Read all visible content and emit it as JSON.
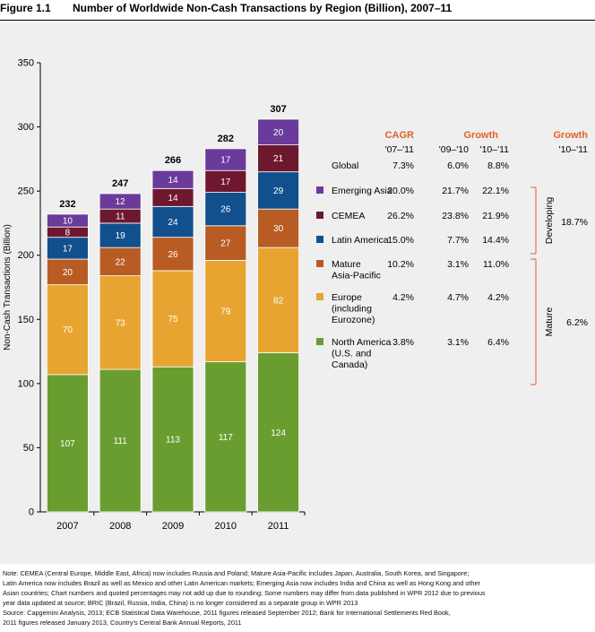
{
  "figure": {
    "number": "Figure 1.1",
    "title": "Number of Worldwide Non-Cash Transactions by Region (Billion), 2007–11"
  },
  "chart_data": {
    "type": "bar",
    "stacked": true,
    "categories": [
      "2007",
      "2008",
      "2009",
      "2010",
      "2011"
    ],
    "ylabel": "Non-Cash Transactions (Billion)",
    "ylim": [
      0,
      350
    ],
    "yticks": [
      0,
      50,
      100,
      150,
      200,
      250,
      300,
      350
    ],
    "totals": [
      232,
      247,
      266,
      282,
      307
    ],
    "series": [
      {
        "name": "North America (U.S. and Canada)",
        "color": "#6a9d2f",
        "values": [
          107,
          111,
          113,
          117,
          124
        ]
      },
      {
        "name": "Europe (including Eurozone)",
        "color": "#e8a431",
        "values": [
          70,
          73,
          75,
          79,
          82
        ]
      },
      {
        "name": "Mature Asia-Pacific",
        "color": "#b85c24",
        "values": [
          20,
          22,
          26,
          27,
          30
        ]
      },
      {
        "name": "Latin America",
        "color": "#11508d",
        "values": [
          17,
          19,
          24,
          26,
          29
        ]
      },
      {
        "name": "CEMEA",
        "color": "#6e1830",
        "values": [
          8,
          11,
          14,
          17,
          21
        ]
      },
      {
        "name": "Emerging Asia",
        "color": "#6a3b9a",
        "values": [
          10,
          12,
          14,
          17,
          20
        ]
      }
    ]
  },
  "table": {
    "headers": {
      "cagr": "CAGR",
      "growth": "Growth",
      "growth_right": "Growth",
      "cagr_period": "'07–'11",
      "growth_0910": "'09–'10",
      "growth_1011": "'10–'11",
      "right_period": "'10–'11"
    },
    "header_color": "#e0622a",
    "rows": [
      {
        "label_lines": [
          "Global"
        ],
        "swatch": null,
        "cagr": "7.3%",
        "g0910": "6.0%",
        "g1011": "8.8%"
      },
      {
        "label_lines": [
          "Emerging Asia"
        ],
        "swatch": "#6a3b9a",
        "cagr": "20.0%",
        "g0910": "21.7%",
        "g1011": "22.1%"
      },
      {
        "label_lines": [
          "CEMEA"
        ],
        "swatch": "#6e1830",
        "cagr": "26.2%",
        "g0910": "23.8%",
        "g1011": "21.9%"
      },
      {
        "label_lines": [
          "Latin America"
        ],
        "swatch": "#11508d",
        "cagr": "15.0%",
        "g0910": "7.7%",
        "g1011": "14.4%"
      },
      {
        "label_lines": [
          "Mature",
          "Asia-Pacific"
        ],
        "swatch": "#b85c24",
        "cagr": "10.2%",
        "g0910": "3.1%",
        "g1011": "11.0%"
      },
      {
        "label_lines": [
          "Europe",
          "(including",
          "Eurozone)"
        ],
        "swatch": "#e8a431",
        "cagr": "4.2%",
        "g0910": "4.7%",
        "g1011": "4.2%"
      },
      {
        "label_lines": [
          "North America",
          "(U.S. and",
          "Canada)"
        ],
        "swatch": "#6a9d2f",
        "cagr": "3.8%",
        "g0910": "3.1%",
        "g1011": "6.4%"
      }
    ],
    "groups": [
      {
        "name": "Developing",
        "growth": "18.7%"
      },
      {
        "name": "Mature",
        "growth": "6.2%"
      }
    ]
  },
  "note": {
    "lines": [
      "Note: CEMEA (Central Europe, Middle East, Africa) now includes Russia and Poland; Mature Asia-Pacific includes Japan, Australia, South Korea, and Singapore;",
      "Latin America now includes Brazil as well as Mexico and other Latin American markets; Emerging Asia now includes India and China as well as Hong Kong and other",
      "Asian countries; Chart numbers and quoted percentages may not add up due to rounding; Some numbers may differ from data published in WPR 2012 due to previous",
      "year data updated at source; BRIC (Brazil, Russia, India, China) is no longer considered as a separate group in WPR 2013",
      "Source: Capgemini Analysis, 2013; ECB Statistical Data Warehouse, 2011 figures released September 2012; Bank for International Settlements Red Book,",
      "2011 figures released January 2013, Country’s Central Bank Annual Reports, 2011"
    ]
  }
}
